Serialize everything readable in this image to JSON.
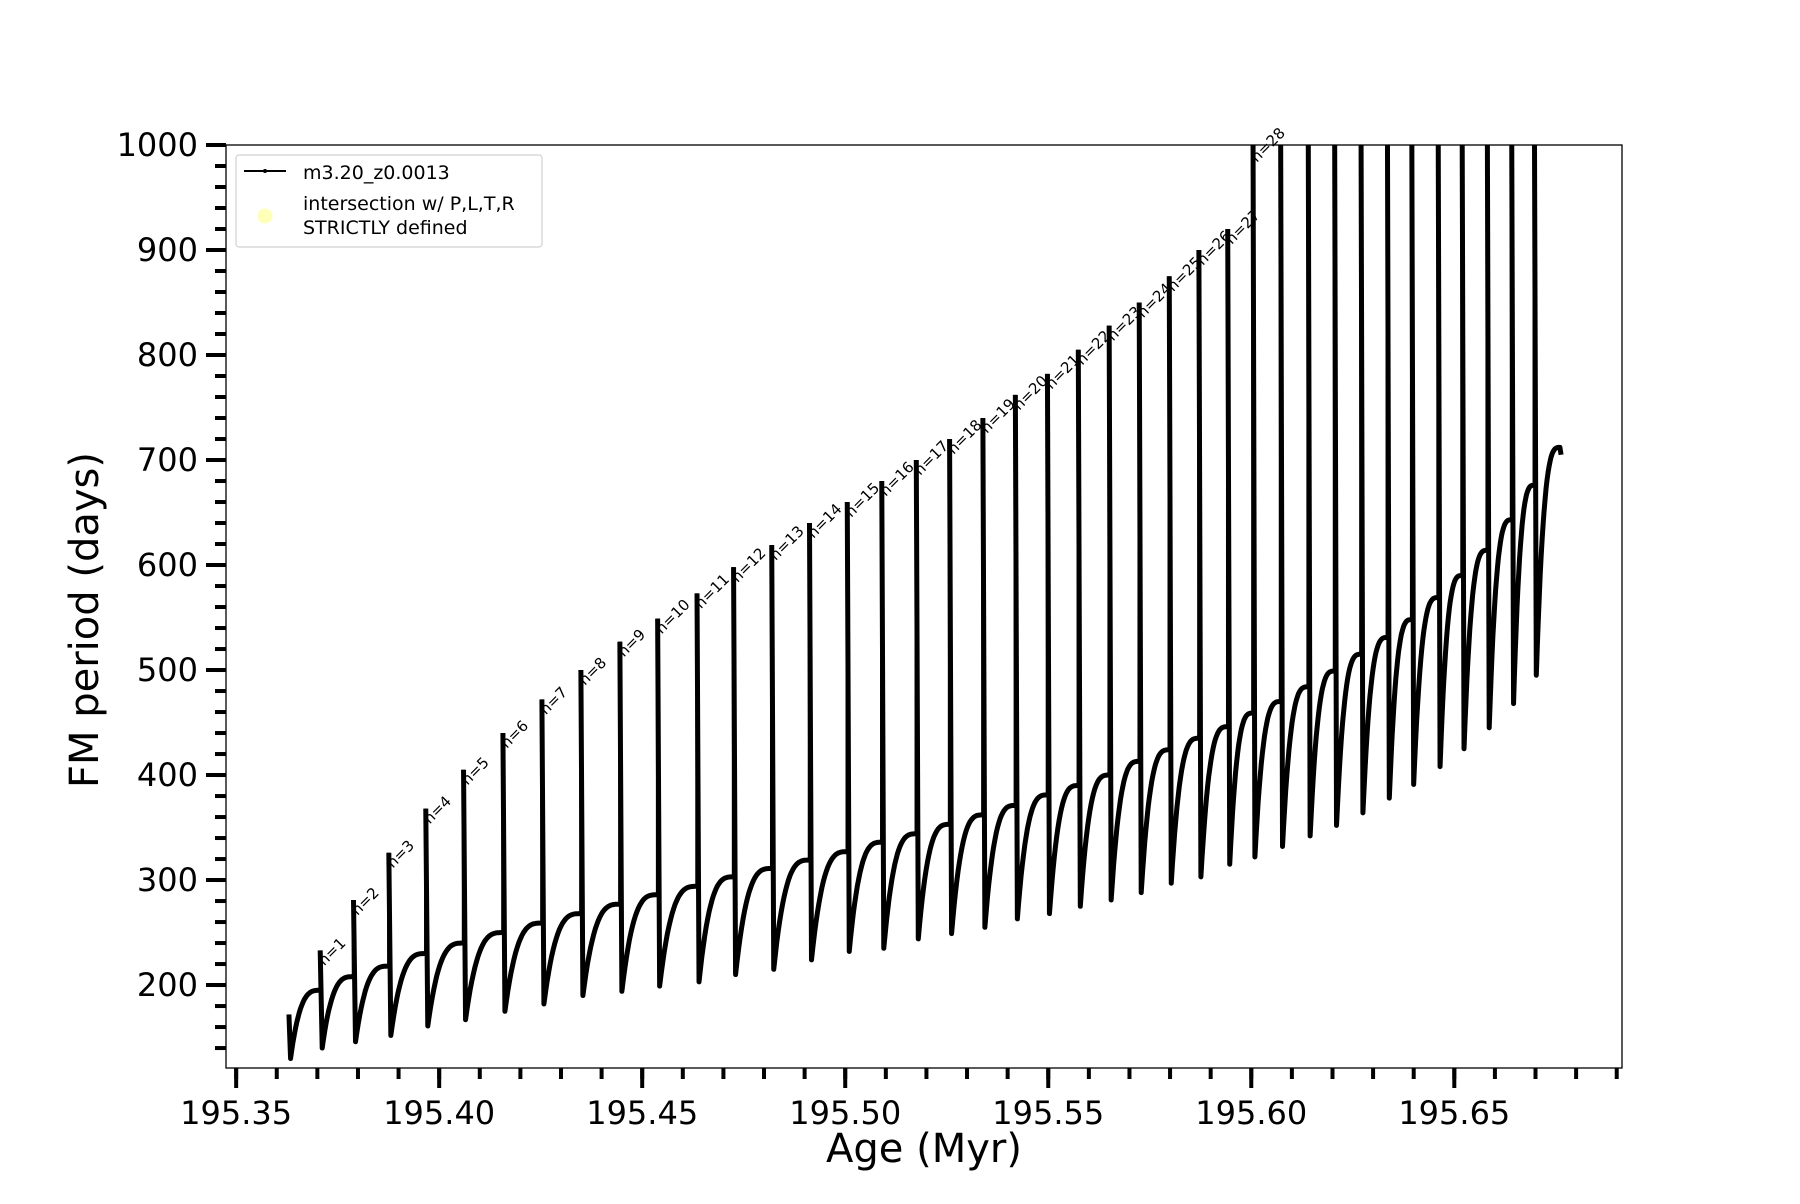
{
  "chart_data": {
    "type": "line",
    "title": "",
    "xlabel": "Age (Myr)",
    "ylabel": "FM period (days)",
    "xlim": [
      195.3475,
      195.6913
    ],
    "ylim": [
      121,
      1000
    ],
    "x_ticks": [
      "195.35",
      "195.40",
      "195.45",
      "195.50",
      "195.55",
      "195.60",
      "195.65"
    ],
    "x_tick_values": [
      195.35,
      195.4,
      195.45,
      195.5,
      195.55,
      195.6,
      195.65
    ],
    "y_ticks": [
      "200",
      "300",
      "400",
      "500",
      "600",
      "700",
      "800",
      "900",
      "1000"
    ],
    "y_tick_values": [
      200,
      300,
      400,
      500,
      600,
      700,
      800,
      900,
      1000
    ],
    "x_minor_step": 0.01,
    "y_minor_step": 20,
    "grid": false,
    "legend_position": "top-left",
    "legend": [
      {
        "label": "m3.20_z0.0013",
        "marker": "line-dot",
        "color": "#000000"
      },
      {
        "label_lines": [
          "intersection w/ P,L,T,R",
          "STRICTLY defined"
        ],
        "marker": "circle",
        "color": "#ffffb0"
      }
    ],
    "series": [
      {
        "name": "m3.20_z0.0013",
        "color": "#000000",
        "start": {
          "age": 195.363,
          "value": 172,
          "trough": 130
        },
        "end": {
          "age": 195.676,
          "value": 712,
          "final": 705
        },
        "pulses": [
          {
            "label": "n=1",
            "age": 195.3707,
            "plateau": 195,
            "peak": 233,
            "trough": 140
          },
          {
            "label": "n=2",
            "age": 195.3789,
            "plateau": 208,
            "peak": 281,
            "trough": 146
          },
          {
            "label": "n=3",
            "age": 195.3876,
            "plateau": 218,
            "peak": 326,
            "trough": 152
          },
          {
            "label": "n=4",
            "age": 195.3967,
            "plateau": 230,
            "peak": 368,
            "trough": 161
          },
          {
            "label": "n=5",
            "age": 195.406,
            "plateau": 240,
            "peak": 405,
            "trough": 167
          },
          {
            "label": "n=6",
            "age": 195.4157,
            "plateau": 250,
            "peak": 440,
            "trough": 175
          },
          {
            "label": "n=7",
            "age": 195.4253,
            "plateau": 259,
            "peak": 472,
            "trough": 182
          },
          {
            "label": "n=8",
            "age": 195.4349,
            "plateau": 268,
            "peak": 500,
            "trough": 190
          },
          {
            "label": "n=9",
            "age": 195.4445,
            "plateau": 277,
            "peak": 527,
            "trough": 194
          },
          {
            "label": "n=10",
            "age": 195.4538,
            "plateau": 286,
            "peak": 549,
            "trough": 199
          },
          {
            "label": "n=11",
            "age": 195.4635,
            "plateau": 294,
            "peak": 573,
            "trough": 203
          },
          {
            "label": "n=12",
            "age": 195.4725,
            "plateau": 303,
            "peak": 598,
            "trough": 210
          },
          {
            "label": "n=13",
            "age": 195.4819,
            "plateau": 311,
            "peak": 619,
            "trough": 215
          },
          {
            "label": "n=14",
            "age": 195.4912,
            "plateau": 319,
            "peak": 640,
            "trough": 224
          },
          {
            "label": "n=15",
            "age": 195.5005,
            "plateau": 327,
            "peak": 660,
            "trough": 232
          },
          {
            "label": "n=16",
            "age": 195.509,
            "plateau": 336,
            "peak": 680,
            "trough": 235
          },
          {
            "label": "n=17",
            "age": 195.5175,
            "plateau": 344,
            "peak": 700,
            "trough": 244
          },
          {
            "label": "n=18",
            "age": 195.5257,
            "plateau": 353,
            "peak": 720,
            "trough": 249
          },
          {
            "label": "n=19",
            "age": 195.5339,
            "plateau": 362,
            "peak": 740,
            "trough": 255
          },
          {
            "label": "n=20",
            "age": 195.5419,
            "plateau": 371,
            "peak": 762,
            "trough": 263
          },
          {
            "label": "n=21",
            "age": 195.5498,
            "plateau": 381,
            "peak": 782,
            "trough": 268
          },
          {
            "label": "n=22",
            "age": 195.5574,
            "plateau": 390,
            "peak": 805,
            "trough": 275
          },
          {
            "label": "n=23",
            "age": 195.565,
            "plateau": 400,
            "peak": 828,
            "trough": 281
          },
          {
            "label": "n=24",
            "age": 195.5724,
            "plateau": 413,
            "peak": 850,
            "trough": 288
          },
          {
            "label": "n=25",
            "age": 195.5798,
            "plateau": 424,
            "peak": 875,
            "trough": 297
          },
          {
            "label": "n=26",
            "age": 195.5871,
            "plateau": 435,
            "peak": 900,
            "trough": 303
          },
          {
            "label": "n=27",
            "age": 195.5942,
            "plateau": 446,
            "peak": 920,
            "trough": 315
          },
          {
            "label": "n=28",
            "age": 195.6004,
            "plateau": 459,
            "peak": null,
            "trough": 322
          },
          {
            "label": "",
            "age": 195.6072,
            "plateau": 470,
            "peak": null,
            "trough": 332
          },
          {
            "label": "",
            "age": 195.614,
            "plateau": 484,
            "peak": null,
            "trough": 342
          },
          {
            "label": "",
            "age": 195.6205,
            "plateau": 499,
            "peak": null,
            "trough": 352
          },
          {
            "label": "",
            "age": 195.627,
            "plateau": 515,
            "peak": null,
            "trough": 364
          },
          {
            "label": "",
            "age": 195.6335,
            "plateau": 531,
            "peak": null,
            "trough": 378
          },
          {
            "label": "",
            "age": 195.6395,
            "plateau": 548,
            "peak": null,
            "trough": 391
          },
          {
            "label": "",
            "age": 195.646,
            "plateau": 569,
            "peak": null,
            "trough": 408
          },
          {
            "label": "",
            "age": 195.6519,
            "plateau": 590,
            "peak": null,
            "trough": 425
          },
          {
            "label": "",
            "age": 195.6581,
            "plateau": 614,
            "peak": null,
            "trough": 445
          },
          {
            "label": "",
            "age": 195.6641,
            "plateau": 643,
            "peak": null,
            "trough": 468
          },
          {
            "label": "",
            "age": 195.6697,
            "plateau": 676,
            "peak": null,
            "trough": 495
          }
        ]
      }
    ]
  }
}
